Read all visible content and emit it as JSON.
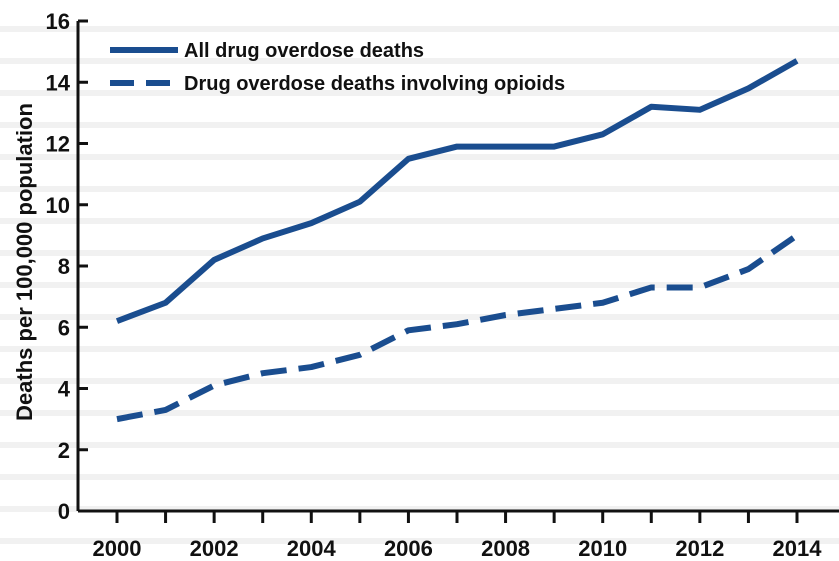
{
  "chart_data": {
    "type": "line",
    "title": "",
    "xlabel": "",
    "ylabel": "Deaths per 100,000 population",
    "x": [
      2000,
      2001,
      2002,
      2003,
      2004,
      2005,
      2006,
      2007,
      2008,
      2009,
      2010,
      2011,
      2012,
      2013,
      2014
    ],
    "xticks": [
      "2000",
      "2002",
      "2004",
      "2006",
      "2008",
      "2010",
      "2012",
      "2014"
    ],
    "xlim": [
      2000,
      2014
    ],
    "yticks": [
      "0",
      "2",
      "4",
      "6",
      "8",
      "10",
      "12",
      "14",
      "16"
    ],
    "ylim": [
      0,
      16
    ],
    "grid": false,
    "legend_position": "top-left",
    "series": [
      {
        "name": "All drug overdose deaths",
        "style": "solid",
        "color": "#1a4d8f",
        "values": [
          6.2,
          6.8,
          8.2,
          8.9,
          9.4,
          10.1,
          11.5,
          11.9,
          11.9,
          11.9,
          12.3,
          13.2,
          13.1,
          13.8,
          14.7
        ]
      },
      {
        "name": "Drug overdose deaths involving opioids",
        "style": "dashed",
        "color": "#1a4d8f",
        "values": [
          3.0,
          3.3,
          4.1,
          4.5,
          4.7,
          5.1,
          5.9,
          6.1,
          6.4,
          6.6,
          6.8,
          7.3,
          7.3,
          7.9,
          9.0
        ]
      }
    ]
  }
}
